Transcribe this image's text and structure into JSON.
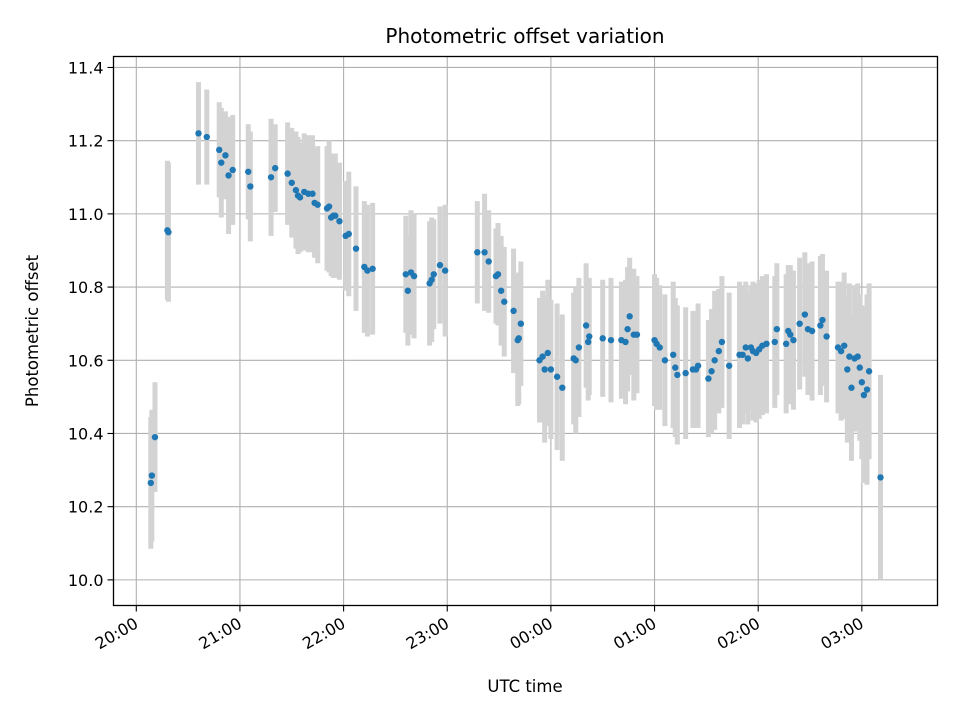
{
  "chart_data": {
    "type": "scatter",
    "title": "Photometric offset variation",
    "xlabel": "UTC time",
    "ylabel": "Photometric offset",
    "x_unit": "hours after 20:00 UTC",
    "xlim": [
      -0.22,
      7.73
    ],
    "ylim": [
      9.93,
      11.43
    ],
    "grid": true,
    "x_ticks": [
      {
        "value": 0,
        "label": "20:00"
      },
      {
        "value": 1,
        "label": "21:00"
      },
      {
        "value": 2,
        "label": "22:00"
      },
      {
        "value": 3,
        "label": "23:00"
      },
      {
        "value": 4,
        "label": "00:00"
      },
      {
        "value": 5,
        "label": "01:00"
      },
      {
        "value": 6,
        "label": "02:00"
      },
      {
        "value": 7,
        "label": "03:00"
      }
    ],
    "y_ticks": [
      {
        "value": 10.0,
        "label": "10.0"
      },
      {
        "value": 10.2,
        "label": "10.2"
      },
      {
        "value": 10.4,
        "label": "10.4"
      },
      {
        "value": 10.6,
        "label": "10.6"
      },
      {
        "value": 10.8,
        "label": "10.8"
      },
      {
        "value": 11.0,
        "label": "11.0"
      },
      {
        "value": 11.2,
        "label": "11.2"
      },
      {
        "value": 11.4,
        "label": "11.4"
      }
    ],
    "marker_color": "#1f77b4",
    "errorbar_color": "#d3d3d3",
    "points": [
      [
        0.14,
        10.265,
        0.18
      ],
      [
        0.15,
        10.285,
        0.18
      ],
      [
        0.18,
        10.39,
        0.15
      ],
      [
        0.3,
        10.955,
        0.19
      ],
      [
        0.31,
        10.95,
        0.19
      ],
      [
        0.6,
        11.22,
        0.14
      ],
      [
        0.68,
        11.21,
        0.13
      ],
      [
        0.8,
        11.175,
        0.13
      ],
      [
        0.82,
        11.14,
        0.15
      ],
      [
        0.86,
        11.16,
        0.12
      ],
      [
        0.89,
        11.105,
        0.16
      ],
      [
        0.93,
        11.12,
        0.15
      ],
      [
        1.08,
        11.115,
        0.13
      ],
      [
        1.1,
        11.075,
        0.15
      ],
      [
        1.3,
        11.1,
        0.16
      ],
      [
        1.34,
        11.125,
        0.12
      ],
      [
        1.46,
        11.11,
        0.14
      ],
      [
        1.5,
        11.085,
        0.15
      ],
      [
        1.54,
        11.065,
        0.16
      ],
      [
        1.56,
        11.05,
        0.16
      ],
      [
        1.58,
        11.045,
        0.15
      ],
      [
        1.62,
        11.06,
        0.16
      ],
      [
        1.66,
        11.055,
        0.16
      ],
      [
        1.7,
        11.055,
        0.16
      ],
      [
        1.72,
        11.03,
        0.15
      ],
      [
        1.75,
        11.025,
        0.16
      ],
      [
        1.84,
        11.015,
        0.17
      ],
      [
        1.86,
        11.02,
        0.18
      ],
      [
        1.88,
        10.99,
        0.16
      ],
      [
        1.9,
        10.995,
        0.17
      ],
      [
        1.92,
        10.995,
        0.17
      ],
      [
        1.96,
        10.98,
        0.16
      ],
      [
        2.02,
        10.94,
        0.15
      ],
      [
        2.05,
        10.945,
        0.17
      ],
      [
        2.12,
        10.905,
        0.17
      ],
      [
        2.2,
        10.855,
        0.18
      ],
      [
        2.23,
        10.845,
        0.18
      ],
      [
        2.28,
        10.85,
        0.18
      ],
      [
        2.6,
        10.835,
        0.16
      ],
      [
        2.62,
        10.79,
        0.15
      ],
      [
        2.65,
        10.84,
        0.17
      ],
      [
        2.68,
        10.83,
        0.17
      ],
      [
        2.83,
        10.81,
        0.17
      ],
      [
        2.85,
        10.82,
        0.17
      ],
      [
        2.87,
        10.835,
        0.15
      ],
      [
        2.93,
        10.86,
        0.16
      ],
      [
        2.98,
        10.845,
        0.18
      ],
      [
        3.29,
        10.895,
        0.14
      ],
      [
        3.36,
        10.895,
        0.16
      ],
      [
        3.4,
        10.87,
        0.14
      ],
      [
        3.47,
        10.83,
        0.13
      ],
      [
        3.49,
        10.835,
        0.14
      ],
      [
        3.52,
        10.79,
        0.15
      ],
      [
        3.55,
        10.76,
        0.15
      ],
      [
        3.64,
        10.735,
        0.17
      ],
      [
        3.68,
        10.655,
        0.18
      ],
      [
        3.69,
        10.66,
        0.18
      ],
      [
        3.71,
        10.7,
        0.17
      ],
      [
        3.89,
        10.6,
        0.17
      ],
      [
        3.92,
        10.61,
        0.18
      ],
      [
        3.94,
        10.575,
        0.2
      ],
      [
        3.97,
        10.62,
        0.2
      ],
      [
        4.0,
        10.575,
        0.19
      ],
      [
        4.06,
        10.555,
        0.2
      ],
      [
        4.11,
        10.525,
        0.2
      ],
      [
        4.22,
        10.605,
        0.18
      ],
      [
        4.24,
        10.6,
        0.2
      ],
      [
        4.27,
        10.635,
        0.19
      ],
      [
        4.34,
        10.695,
        0.17
      ],
      [
        4.36,
        10.65,
        0.16
      ],
      [
        4.37,
        10.665,
        0.16
      ],
      [
        4.5,
        10.66,
        0.16
      ],
      [
        4.58,
        10.655,
        0.17
      ],
      [
        4.68,
        10.655,
        0.16
      ],
      [
        4.72,
        10.65,
        0.17
      ],
      [
        4.74,
        10.685,
        0.17
      ],
      [
        4.76,
        10.72,
        0.16
      ],
      [
        4.8,
        10.67,
        0.18
      ],
      [
        4.83,
        10.67,
        0.16
      ],
      [
        5.0,
        10.655,
        0.18
      ],
      [
        5.02,
        10.645,
        0.18
      ],
      [
        5.05,
        10.635,
        0.17
      ],
      [
        5.1,
        10.6,
        0.18
      ],
      [
        5.18,
        10.615,
        0.2
      ],
      [
        5.2,
        10.58,
        0.19
      ],
      [
        5.22,
        10.56,
        0.19
      ],
      [
        5.3,
        10.565,
        0.18
      ],
      [
        5.37,
        10.575,
        0.16
      ],
      [
        5.4,
        10.575,
        0.16
      ],
      [
        5.42,
        10.585,
        0.17
      ],
      [
        5.52,
        10.55,
        0.16
      ],
      [
        5.55,
        10.57,
        0.17
      ],
      [
        5.58,
        10.6,
        0.19
      ],
      [
        5.62,
        10.625,
        0.17
      ],
      [
        5.65,
        10.65,
        0.18
      ],
      [
        5.72,
        10.585,
        0.2
      ],
      [
        5.82,
        10.615,
        0.2
      ],
      [
        5.85,
        10.615,
        0.19
      ],
      [
        5.88,
        10.635,
        0.18
      ],
      [
        5.9,
        10.605,
        0.18
      ],
      [
        5.93,
        10.635,
        0.17
      ],
      [
        5.95,
        10.625,
        0.19
      ],
      [
        5.98,
        10.62,
        0.19
      ],
      [
        6.01,
        10.63,
        0.19
      ],
      [
        6.04,
        10.64,
        0.19
      ],
      [
        6.08,
        10.645,
        0.19
      ],
      [
        6.16,
        10.65,
        0.18
      ],
      [
        6.18,
        10.685,
        0.18
      ],
      [
        6.27,
        10.645,
        0.19
      ],
      [
        6.29,
        10.68,
        0.18
      ],
      [
        6.31,
        10.67,
        0.19
      ],
      [
        6.34,
        10.655,
        0.19
      ],
      [
        6.4,
        10.7,
        0.18
      ],
      [
        6.45,
        10.725,
        0.17
      ],
      [
        6.48,
        10.685,
        0.18
      ],
      [
        6.52,
        10.68,
        0.19
      ],
      [
        6.6,
        10.695,
        0.19
      ],
      [
        6.62,
        10.71,
        0.18
      ],
      [
        6.66,
        10.665,
        0.18
      ],
      [
        6.77,
        10.635,
        0.18
      ],
      [
        6.8,
        10.625,
        0.19
      ],
      [
        6.83,
        10.64,
        0.2
      ],
      [
        6.86,
        10.575,
        0.2
      ],
      [
        6.88,
        10.61,
        0.2
      ],
      [
        6.9,
        10.525,
        0.2
      ],
      [
        6.93,
        10.605,
        0.2
      ],
      [
        6.96,
        10.61,
        0.2
      ],
      [
        6.98,
        10.58,
        0.2
      ],
      [
        7.0,
        10.54,
        0.21
      ],
      [
        7.02,
        10.505,
        0.24
      ],
      [
        7.05,
        10.52,
        0.26
      ],
      [
        7.07,
        10.57,
        0.24
      ],
      [
        7.18,
        10.28,
        0.28
      ]
    ]
  }
}
